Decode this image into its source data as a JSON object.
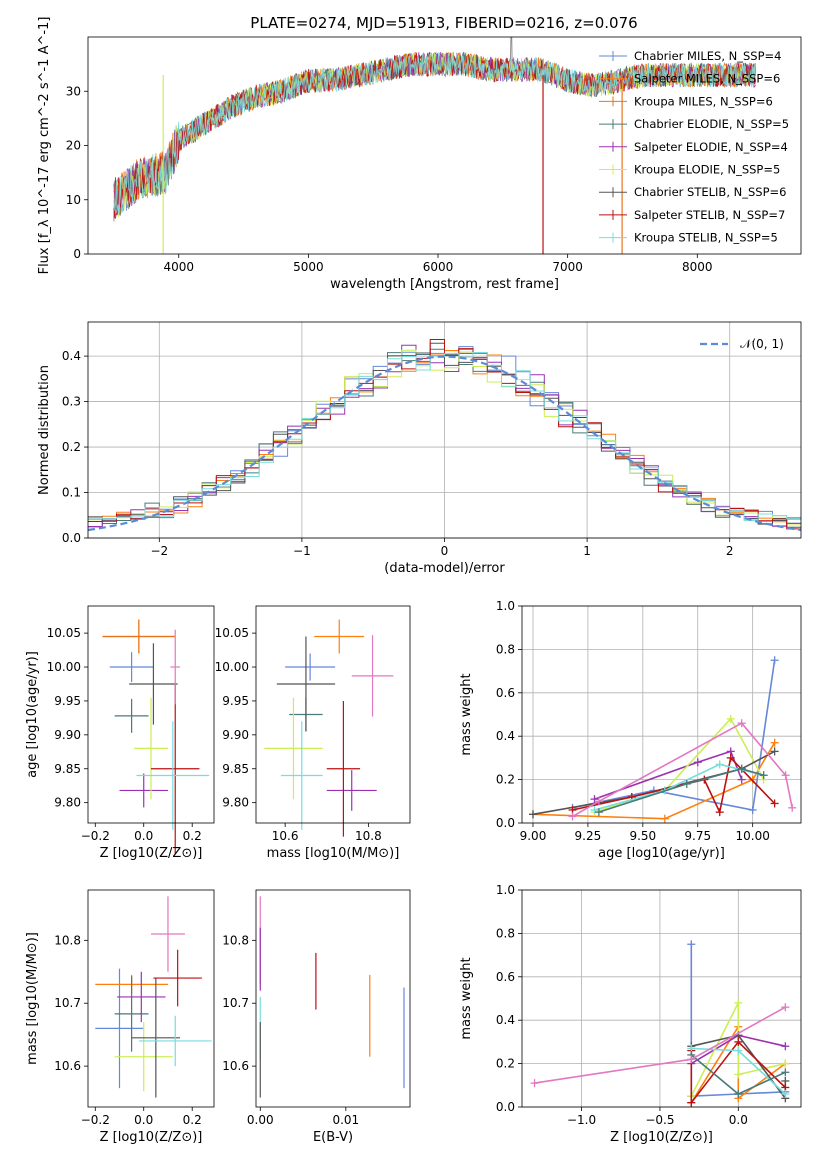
{
  "figure_title": "PLATE=0274, MJD=51913, FIBERID=0216, z=0.076",
  "colors": {
    "chabrier_miles": "#6688d8",
    "salpeter_miles": "#ff7f0e",
    "kroupa_miles": "#e8741e",
    "chabrier_elodie": "#4a7a7a",
    "salpeter_elodie": "#9a33b0",
    "kroupa_elodie": "#ccee55",
    "chabrier_stelib": "#555555",
    "salpeter_stelib": "#bb1111",
    "kroupa_stelib": "#77dddd",
    "pink_ssp": "#e377c2",
    "normal_curve": "#5b8bd6"
  },
  "chart_data": [
    {
      "id": "spectrum",
      "type": "line",
      "xlabel": "wavelength [Angstrom, rest frame]",
      "ylabel": "Flux [f_λ 10^-17 erg cm^-2 s^-1 A^-1]",
      "xlim": [
        3300,
        8800
      ],
      "ylim": [
        0,
        40
      ],
      "xticks": [
        "4000",
        "5000",
        "6000",
        "7000",
        "8000"
      ],
      "yticks": [
        "0",
        "10",
        "20",
        "30"
      ],
      "legend_position": "right",
      "series": [
        {
          "name": "Chabrier MILES, N_SSP=4",
          "color": "#6688d8"
        },
        {
          "name": "Salpeter MILES, N_SSP=6",
          "color": "#ff7f0e"
        },
        {
          "name": "Kroupa MILES, N_SSP=6",
          "color": "#e8741e"
        },
        {
          "name": "Chabrier ELODIE, N_SSP=5",
          "color": "#4a7a7a"
        },
        {
          "name": "Salpeter ELODIE, N_SSP=4",
          "color": "#9a33b0"
        },
        {
          "name": "Kroupa ELODIE, N_SSP=5",
          "color": "#ccee55"
        },
        {
          "name": "Chabrier STELIB, N_SSP=6",
          "color": "#555555"
        },
        {
          "name": "Salpeter STELIB, N_SSP=7",
          "color": "#bb1111"
        },
        {
          "name": "Kroupa STELIB, N_SSP=5",
          "color": "#77dddd"
        }
      ],
      "envelope": [
        [
          3500,
          10
        ],
        [
          3700,
          14
        ],
        [
          3900,
          15
        ],
        [
          4000,
          21
        ],
        [
          4200,
          24
        ],
        [
          4400,
          27
        ],
        [
          4600,
          29
        ],
        [
          4800,
          30
        ],
        [
          5000,
          32
        ],
        [
          5200,
          32
        ],
        [
          5400,
          33
        ],
        [
          5600,
          34
        ],
        [
          5800,
          35
        ],
        [
          6000,
          35
        ],
        [
          6200,
          35
        ],
        [
          6400,
          34
        ],
        [
          6600,
          34
        ],
        [
          6800,
          34
        ],
        [
          7000,
          32
        ],
        [
          7200,
          31
        ],
        [
          7400,
          32
        ],
        [
          7600,
          33
        ],
        [
          7800,
          33
        ],
        [
          8000,
          33
        ],
        [
          8200,
          33
        ],
        [
          8400,
          33
        ]
      ]
    },
    {
      "id": "residuals",
      "type": "histogram",
      "xlabel": "(data-model)/error",
      "ylabel": "Normed distribution",
      "xlim": [
        -2.5,
        2.5
      ],
      "ylim": [
        0,
        0.475
      ],
      "xticks": [
        "−2",
        "−1",
        "0",
        "1",
        "2"
      ],
      "yticks": [
        "0.0",
        "0.1",
        "0.2",
        "0.3",
        "0.4"
      ],
      "grid": true,
      "legend_position": "top-right",
      "reference_label": "𝒩(0, 1)",
      "bin_edges": [
        -2.5,
        -2.4,
        -2.3,
        -2.2,
        -2.1,
        -2.0,
        -1.9,
        -1.8,
        -1.7,
        -1.6,
        -1.5,
        -1.4,
        -1.3,
        -1.2,
        -1.1,
        -1.0,
        -0.9,
        -0.8,
        -0.7,
        -0.6,
        -0.5,
        -0.4,
        -0.3,
        -0.2,
        -0.1,
        0.0,
        0.1,
        0.2,
        0.3,
        0.4,
        0.5,
        0.6,
        0.7,
        0.8,
        0.9,
        1.0,
        1.1,
        1.2,
        1.3,
        1.4,
        1.5,
        1.6,
        1.7,
        1.8,
        1.9,
        2.0,
        2.1,
        2.2,
        2.3,
        2.4,
        2.5
      ]
    },
    {
      "id": "age_vs_z",
      "type": "scatter",
      "xlabel": "Z [log10(Z/Z⊙)]",
      "ylabel": "age [log10(age/yr)]",
      "xlim": [
        -0.23,
        0.29
      ],
      "ylim": [
        9.77,
        10.09
      ],
      "xticks": [
        "−0.2",
        "0.0",
        "0.2"
      ],
      "yticks": [
        "9.80",
        "9.85",
        "9.90",
        "9.95",
        "10.00",
        "10.05"
      ],
      "points": [
        {
          "x": -0.05,
          "y": 10.0,
          "xerr": 0.09,
          "yerr": 0.022,
          "color": "#6688d8"
        },
        {
          "x": -0.02,
          "y": 10.045,
          "xerr": 0.15,
          "yerr": 0.025,
          "color": "#ff7f0e"
        },
        {
          "x": -0.02,
          "y": 10.045,
          "xerr": 0.15,
          "yerr": 0.025,
          "color": "#e8741e"
        },
        {
          "x": -0.05,
          "y": 9.928,
          "xerr": 0.07,
          "yerr": 0.025,
          "color": "#4a7a7a"
        },
        {
          "x": 0.0,
          "y": 9.818,
          "xerr": 0.1,
          "yerr": 0.025,
          "color": "#9a33b0"
        },
        {
          "x": 0.03,
          "y": 9.88,
          "xerr": 0.07,
          "yerr": 0.075,
          "color": "#ccee55"
        },
        {
          "x": 0.04,
          "y": 9.975,
          "xerr": 0.1,
          "yerr": 0.06,
          "color": "#555555"
        },
        {
          "x": 0.13,
          "y": 9.85,
          "xerr": 0.1,
          "yerr": 0.125,
          "color": "#bb1111"
        },
        {
          "x": 0.12,
          "y": 9.84,
          "xerr": 0.15,
          "yerr": 0.08,
          "color": "#77dddd"
        },
        {
          "x": 0.13,
          "y": 10.0,
          "xerr": 0.02,
          "yerr": 0.055,
          "color": "#e377c2"
        }
      ]
    },
    {
      "id": "age_vs_mass",
      "type": "scatter",
      "xlabel": "mass [log10(M/M⊙)]",
      "ylabel": "",
      "xlim": [
        10.53,
        10.9
      ],
      "ylim": [
        9.77,
        10.09
      ],
      "xticks": [
        "10.6",
        "10.8"
      ],
      "yticks": [
        "9.80",
        "9.85",
        "9.90",
        "9.95",
        "10.00",
        "10.05"
      ],
      "points": [
        {
          "x": 10.66,
          "y": 10.0,
          "xerr": 0.06,
          "yerr": 0.02,
          "color": "#6688d8"
        },
        {
          "x": 10.73,
          "y": 10.045,
          "xerr": 0.06,
          "yerr": 0.025,
          "color": "#ff7f0e"
        },
        {
          "x": 10.65,
          "y": 9.93,
          "xerr": 0.04,
          "yerr": 0.025,
          "color": "#4a7a7a"
        },
        {
          "x": 10.76,
          "y": 9.818,
          "xerr": 0.06,
          "yerr": 0.03,
          "color": "#9a33b0"
        },
        {
          "x": 10.62,
          "y": 9.88,
          "xerr": 0.07,
          "yerr": 0.075,
          "color": "#ccee55"
        },
        {
          "x": 10.65,
          "y": 9.975,
          "xerr": 0.07,
          "yerr": 0.07,
          "color": "#555555"
        },
        {
          "x": 10.74,
          "y": 9.85,
          "xerr": 0.04,
          "yerr": 0.1,
          "color": "#bb1111"
        },
        {
          "x": 10.64,
          "y": 9.84,
          "xerr": 0.05,
          "yerr": 0.08,
          "color": "#77dddd"
        },
        {
          "x": 10.81,
          "y": 9.987,
          "xerr": 0.05,
          "yerr": 0.06,
          "color": "#e377c2"
        }
      ]
    },
    {
      "id": "massweight_vs_age",
      "type": "line",
      "xlabel": "age [log10(age/yr)]",
      "ylabel": "mass weight",
      "xlim": [
        8.95,
        10.22
      ],
      "ylim": [
        0,
        1
      ],
      "xticks": [
        "9.00",
        "9.25",
        "9.50",
        "9.75",
        "10.00"
      ],
      "yticks": [
        "0.0",
        "0.2",
        "0.4",
        "0.6",
        "0.8",
        "1.0"
      ],
      "grid": true,
      "series": [
        {
          "color": "#6688d8",
          "x": [
            9.18,
            9.55,
            10.0,
            10.1
          ],
          "y": [
            0.07,
            0.15,
            0.06,
            0.75
          ]
        },
        {
          "color": "#ff7f0e",
          "x": [
            9.0,
            9.6,
            10.0,
            10.1
          ],
          "y": [
            0.04,
            0.02,
            0.2,
            0.37
          ]
        },
        {
          "color": "#9a33b0",
          "x": [
            9.28,
            9.75,
            9.9,
            9.95
          ],
          "y": [
            0.11,
            0.28,
            0.33,
            0.2
          ]
        },
        {
          "color": "#ccee55",
          "x": [
            9.28,
            9.6,
            9.9,
            10.05
          ],
          "y": [
            0.05,
            0.15,
            0.48,
            0.2
          ]
        },
        {
          "color": "#555555",
          "x": [
            9.0,
            9.45,
            9.95,
            10.1
          ],
          "y": [
            0.04,
            0.12,
            0.25,
            0.33
          ]
        },
        {
          "color": "#bb1111",
          "x": [
            9.18,
            9.45,
            9.78,
            9.85,
            9.9,
            10.1
          ],
          "y": [
            0.06,
            0.12,
            0.2,
            0.05,
            0.3,
            0.09
          ]
        },
        {
          "color": "#77dddd",
          "x": [
            9.28,
            9.6,
            9.85,
            10.05
          ],
          "y": [
            0.06,
            0.15,
            0.27,
            0.22
          ]
        },
        {
          "color": "#4a7a7a",
          "x": [
            9.3,
            9.7,
            9.95,
            10.05
          ],
          "y": [
            0.05,
            0.18,
            0.25,
            0.22
          ]
        },
        {
          "color": "#e377c2",
          "x": [
            9.18,
            9.3,
            9.95,
            10.15,
            10.18
          ],
          "y": [
            0.03,
            0.1,
            0.46,
            0.22,
            0.07
          ]
        }
      ]
    },
    {
      "id": "mass_vs_z",
      "type": "scatter",
      "xlabel": "Z [log10(Z/Z⊙)]",
      "ylabel": "mass [log10(M/M⊙)]",
      "xlim": [
        -0.23,
        0.29
      ],
      "ylim": [
        10.535,
        10.88
      ],
      "xticks": [
        "−0.2",
        "0.0",
        "0.2"
      ],
      "yticks": [
        "10.6",
        "10.7",
        "10.8"
      ],
      "points": [
        {
          "x": -0.1,
          "y": 10.66,
          "xerr": 0.1,
          "yerr": 0.095,
          "color": "#6688d8"
        },
        {
          "x": -0.05,
          "y": 10.73,
          "xerr": 0.15,
          "yerr": 0.015,
          "color": "#ff7f0e"
        },
        {
          "x": -0.05,
          "y": 10.683,
          "xerr": 0.07,
          "yerr": 0.06,
          "color": "#4a7a7a"
        },
        {
          "x": -0.01,
          "y": 10.71,
          "xerr": 0.1,
          "yerr": 0.04,
          "color": "#9a33b0"
        },
        {
          "x": 0.0,
          "y": 10.615,
          "xerr": 0.12,
          "yerr": 0.055,
          "color": "#ccee55"
        },
        {
          "x": 0.05,
          "y": 10.645,
          "xerr": 0.1,
          "yerr": 0.095,
          "color": "#555555"
        },
        {
          "x": 0.14,
          "y": 10.74,
          "xerr": 0.1,
          "yerr": 0.045,
          "color": "#bb1111"
        },
        {
          "x": 0.13,
          "y": 10.64,
          "xerr": 0.15,
          "yerr": 0.04,
          "color": "#77dddd"
        },
        {
          "x": 0.1,
          "y": 10.81,
          "xerr": 0.07,
          "yerr": 0.06,
          "color": "#e377c2"
        }
      ]
    },
    {
      "id": "mass_vs_ebv",
      "type": "scatter",
      "xlabel": "E(B-V)",
      "ylabel": "",
      "xlim": [
        -0.0005,
        0.0175
      ],
      "ylim": [
        10.535,
        10.88
      ],
      "xticks": [
        "0.00",
        "0.01"
      ],
      "yticks": [
        "10.6",
        "10.7",
        "10.8"
      ],
      "points": [
        {
          "x": 0.0,
          "y": 10.8,
          "xerr": 0,
          "yerr": 0.07,
          "color": "#e377c2"
        },
        {
          "x": 0.0,
          "y": 10.77,
          "xerr": 0,
          "yerr": 0.05,
          "color": "#9a33b0"
        },
        {
          "x": 0.0,
          "y": 10.66,
          "xerr": 0,
          "yerr": 0.05,
          "color": "#77dddd"
        },
        {
          "x": 0.0,
          "y": 10.61,
          "xerr": 0,
          "yerr": 0.06,
          "color": "#555555"
        },
        {
          "x": 0.0065,
          "y": 10.735,
          "xerr": 0,
          "yerr": 0.045,
          "color": "#bb1111"
        },
        {
          "x": 0.0128,
          "y": 10.68,
          "xerr": 0,
          "yerr": 0.065,
          "color": "#ff7f0e"
        },
        {
          "x": 0.0168,
          "y": 10.645,
          "xerr": 0,
          "yerr": 0.08,
          "color": "#6688d8"
        }
      ]
    },
    {
      "id": "massweight_vs_z",
      "type": "line",
      "xlabel": "Z [log10(Z/Z⊙)]",
      "ylabel": "mass weight",
      "xlim": [
        -1.38,
        0.4
      ],
      "ylim": [
        0,
        1
      ],
      "xticks": [
        "−1.0",
        "−0.5",
        "0.0"
      ],
      "yticks": [
        "0.0",
        "0.2",
        "0.4",
        "0.6",
        "0.8",
        "1.0"
      ],
      "grid": true,
      "series": [
        {
          "color": "#6688d8",
          "x": [
            -0.3,
            -0.3,
            0.0,
            0.3
          ],
          "y": [
            0.75,
            0.05,
            0.06,
            0.07
          ]
        },
        {
          "color": "#ff7f0e",
          "x": [
            -0.3,
            0.0,
            0.0,
            0.3
          ],
          "y": [
            0.02,
            0.37,
            0.04,
            0.2
          ]
        },
        {
          "color": "#9a33b0",
          "x": [
            -0.3,
            0.0,
            0.3
          ],
          "y": [
            0.2,
            0.33,
            0.28
          ]
        },
        {
          "color": "#ccee55",
          "x": [
            -0.3,
            0.0,
            0.0,
            0.3
          ],
          "y": [
            0.05,
            0.48,
            0.15,
            0.2
          ]
        },
        {
          "color": "#555555",
          "x": [
            -0.3,
            0.0,
            0.3,
            0.3
          ],
          "y": [
            0.28,
            0.33,
            0.04,
            0.12
          ]
        },
        {
          "color": "#bb1111",
          "x": [
            -0.3,
            -0.3,
            0.0,
            0.3
          ],
          "y": [
            0.26,
            0.02,
            0.3,
            0.09
          ]
        },
        {
          "color": "#77dddd",
          "x": [
            -0.3,
            0.0,
            0.3
          ],
          "y": [
            0.27,
            0.26,
            0.06
          ]
        },
        {
          "color": "#4a7a7a",
          "x": [
            -0.3,
            0.0,
            0.3
          ],
          "y": [
            0.24,
            0.06,
            0.16
          ]
        },
        {
          "color": "#e377c2",
          "x": [
            -1.3,
            -0.3,
            0.3
          ],
          "y": [
            0.11,
            0.22,
            0.46
          ]
        }
      ]
    }
  ]
}
